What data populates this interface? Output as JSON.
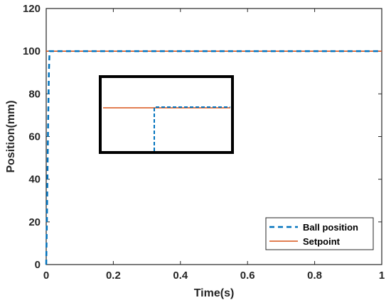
{
  "chart_data": {
    "type": "line",
    "xlabel": "Time(s)",
    "ylabel": "Position(mm)",
    "xlim": [
      0,
      1
    ],
    "ylim": [
      0,
      120
    ],
    "xticks": [
      "0",
      "0.2",
      "0.4",
      "0.6",
      "0.8",
      "1"
    ],
    "yticks": [
      "0",
      "20",
      "40",
      "60",
      "80",
      "100",
      "120"
    ],
    "grid": false,
    "legend_position": "bottom-right",
    "series": [
      {
        "name": "Ball position",
        "style": "dashed",
        "color": "#0072BD",
        "x": [
          0,
          0.002,
          0.004,
          0.006,
          0.008,
          0.01,
          0.02,
          1
        ],
        "y": [
          0,
          20,
          45,
          70,
          90,
          100,
          100,
          100
        ]
      },
      {
        "name": "Setpoint",
        "style": "solid",
        "color": "#D95319",
        "x": [
          0,
          1
        ],
        "y": [
          100,
          100
        ]
      }
    ],
    "inset": {
      "description": "zoom box",
      "setpoint_color": "#D95319",
      "ball_color": "#0072BD"
    }
  }
}
